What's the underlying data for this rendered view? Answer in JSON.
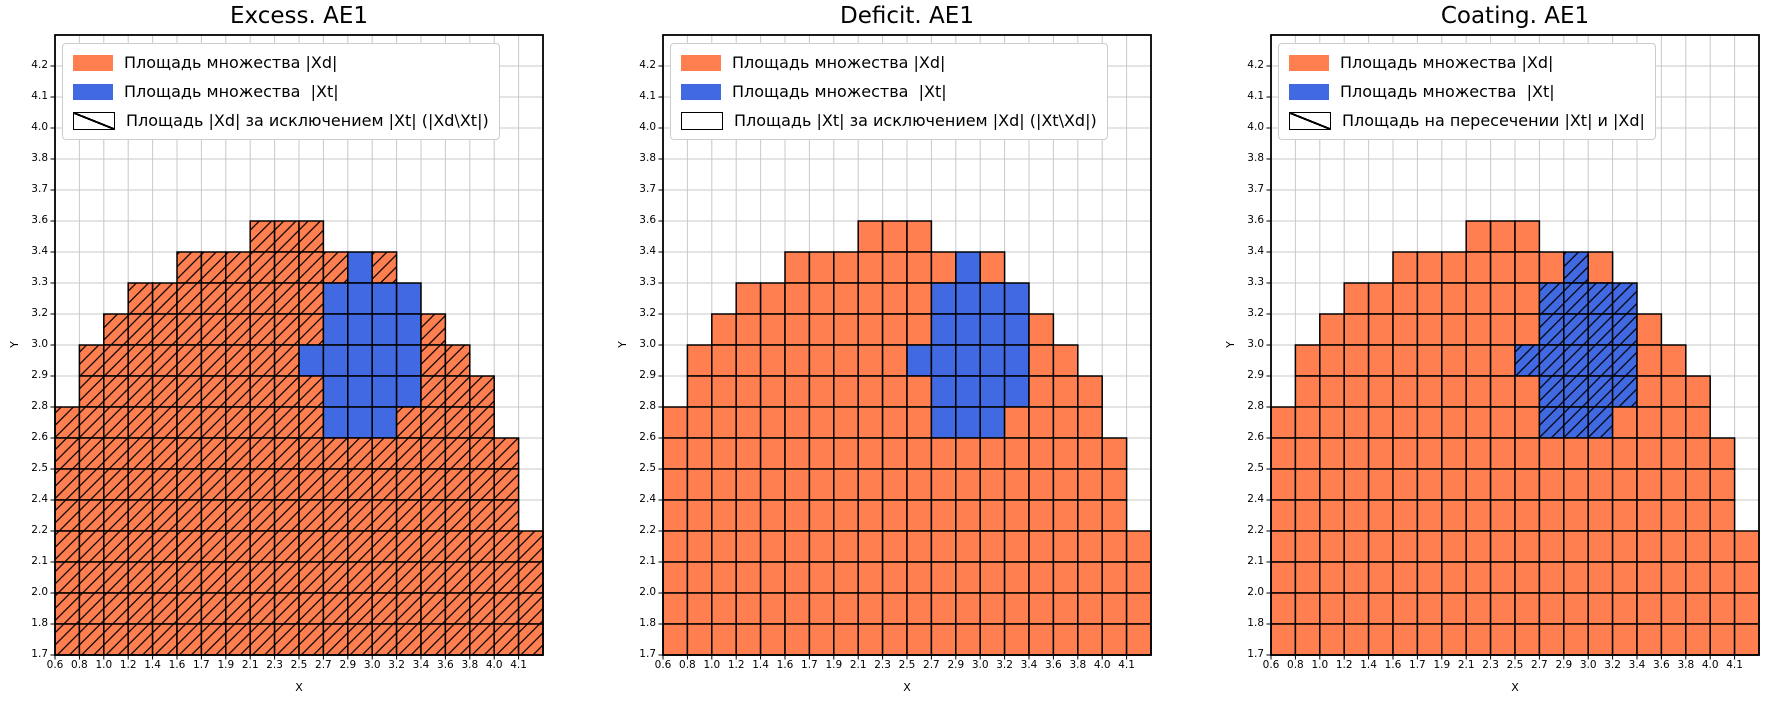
{
  "colors": {
    "xd_fill": "#FF7F50",
    "xt_fill": "#4169E1",
    "cell_edge": "#000000",
    "grid_line": "#c8c8c8",
    "spine": "#000000",
    "hatch_line": "#000000",
    "legend_border": "#cccccc",
    "background": "#ffffff"
  },
  "chart_data": [
    {
      "type": "heatmap",
      "title": "Excess. AE1",
      "xlabel": "X",
      "ylabel": "Y",
      "x_tick_labels": [
        "0.6",
        "0.8",
        "1.0",
        "1.2",
        "1.4",
        "1.6",
        "1.7",
        "1.9",
        "2.1",
        "2.3",
        "2.5",
        "2.7",
        "2.9",
        "3.0",
        "3.2",
        "3.4",
        "3.6",
        "3.8",
        "4.0",
        "4.1"
      ],
      "y_tick_labels_top_to_bottom": [
        "4.2",
        "4.1",
        "4.0",
        "3.8",
        "3.7",
        "3.6",
        "3.4",
        "3.3",
        "3.2",
        "3.0",
        "2.9",
        "2.8",
        "2.6",
        "2.5",
        "2.4",
        "2.2",
        "2.1",
        "2.0",
        "1.8",
        "1.7"
      ],
      "grid": {
        "cols": 20,
        "rows": 20,
        "grid_on": true
      },
      "cell_codes": {
        ".": "empty",
        "o": "set-Xd-orange",
        "b": "set-Xt-blue"
      },
      "cells_rows_top_to_bottom": [
        "....................",
        "....................",
        "....................",
        "....................",
        "....................",
        "....................",
        "........ooo.........",
        ".....ooooooobo......",
        "...oooooooobbbb.....",
        "..ooooooooobbbbo....",
        ".ooooooooobbbbboo...",
        ".oooooooooobbbbooo..",
        "ooooooooooobbboooo..",
        "ooooooooooooooooooo.",
        "ooooooooooooooooooo.",
        "ooooooooooooooooooo.",
        "oooooooooooooooooooo",
        "oooooooooooooooooooo",
        "oooooooooooooooooooo",
        "oooooooooooooooooooo"
      ],
      "hatched_cells": "o",
      "legend_entries": [
        {
          "label": "Площадь множества |Xd|",
          "swatch": "solid-xd"
        },
        {
          "label": "Площадь множества  |Xt|",
          "swatch": "solid-xt"
        },
        {
          "label": "Площадь |Xd| за исключением |Xt| (|Xd\\Xt|)",
          "swatch": "hatch-diagonal"
        }
      ],
      "legend_position": "upper-left"
    },
    {
      "type": "heatmap",
      "title": "Deficit. AE1",
      "xlabel": "X",
      "ylabel": "Y",
      "x_tick_labels": [
        "0.6",
        "0.8",
        "1.0",
        "1.2",
        "1.4",
        "1.6",
        "1.7",
        "1.9",
        "2.1",
        "2.3",
        "2.5",
        "2.7",
        "2.9",
        "3.0",
        "3.2",
        "3.4",
        "3.6",
        "3.8",
        "4.0",
        "4.1"
      ],
      "y_tick_labels_top_to_bottom": [
        "4.2",
        "4.1",
        "4.0",
        "3.8",
        "3.7",
        "3.6",
        "3.4",
        "3.3",
        "3.2",
        "3.0",
        "2.9",
        "2.8",
        "2.6",
        "2.5",
        "2.4",
        "2.2",
        "2.1",
        "2.0",
        "1.8",
        "1.7"
      ],
      "grid": {
        "cols": 20,
        "rows": 20,
        "grid_on": true
      },
      "cell_codes": {
        ".": "empty",
        "o": "set-Xd-orange",
        "b": "set-Xt-blue"
      },
      "cells_rows_top_to_bottom": [
        "....................",
        "....................",
        "....................",
        "....................",
        "....................",
        "....................",
        "........ooo.........",
        ".....ooooooobo......",
        "...oooooooobbbb.....",
        "..ooooooooobbbbo....",
        ".ooooooooobbbbboo...",
        ".oooooooooobbbbooo..",
        "ooooooooooobbboooo..",
        "ooooooooooooooooooo.",
        "ooooooooooooooooooo.",
        "ooooooooooooooooooo.",
        "oooooooooooooooooooo",
        "oooooooooooooooooooo",
        "oooooooooooooooooooo",
        "oooooooooooooooooooo"
      ],
      "hatched_cells": "none",
      "legend_entries": [
        {
          "label": "Площадь множества |Xd|",
          "swatch": "solid-xd"
        },
        {
          "label": "Площадь множества  |Xt|",
          "swatch": "solid-xt"
        },
        {
          "label": "Площадь |Xt| за исключением |Xd| (|Xt\\Xd|)",
          "swatch": "outline-empty"
        }
      ],
      "legend_position": "upper-left"
    },
    {
      "type": "heatmap",
      "title": "Coating. AE1",
      "xlabel": "X",
      "ylabel": "Y",
      "x_tick_labels": [
        "0.6",
        "0.8",
        "1.0",
        "1.2",
        "1.4",
        "1.6",
        "1.7",
        "1.9",
        "2.1",
        "2.3",
        "2.5",
        "2.7",
        "2.9",
        "3.0",
        "3.2",
        "3.4",
        "3.6",
        "3.8",
        "4.0",
        "4.1"
      ],
      "y_tick_labels_top_to_bottom": [
        "4.2",
        "4.1",
        "4.0",
        "3.8",
        "3.7",
        "3.6",
        "3.4",
        "3.3",
        "3.2",
        "3.0",
        "2.9",
        "2.8",
        "2.6",
        "2.5",
        "2.4",
        "2.2",
        "2.1",
        "2.0",
        "1.8",
        "1.7"
      ],
      "grid": {
        "cols": 20,
        "rows": 20,
        "grid_on": true
      },
      "cell_codes": {
        ".": "empty",
        "o": "set-Xd-orange",
        "b": "set-Xt-blue"
      },
      "cells_rows_top_to_bottom": [
        "....................",
        "....................",
        "....................",
        "....................",
        "....................",
        "....................",
        "........ooo.........",
        ".....ooooooobo......",
        "...oooooooobbbb.....",
        "..ooooooooobbbbo....",
        ".ooooooooobbbbboo...",
        ".oooooooooobbbbooo..",
        "ooooooooooobbboooo..",
        "ooooooooooooooooooo.",
        "ooooooooooooooooooo.",
        "ooooooooooooooooooo.",
        "oooooooooooooooooooo",
        "oooooooooooooooooooo",
        "oooooooooooooooooooo",
        "oooooooooooooooooooo"
      ],
      "hatched_cells": "b",
      "legend_entries": [
        {
          "label": "Площадь множества |Xd|",
          "swatch": "solid-xd"
        },
        {
          "label": "Площадь множества  |Xt|",
          "swatch": "solid-xt"
        },
        {
          "label": "Площадь на пересечении |Xt| и |Xd|",
          "swatch": "hatch-diagonal"
        }
      ],
      "legend_position": "upper-left"
    }
  ]
}
